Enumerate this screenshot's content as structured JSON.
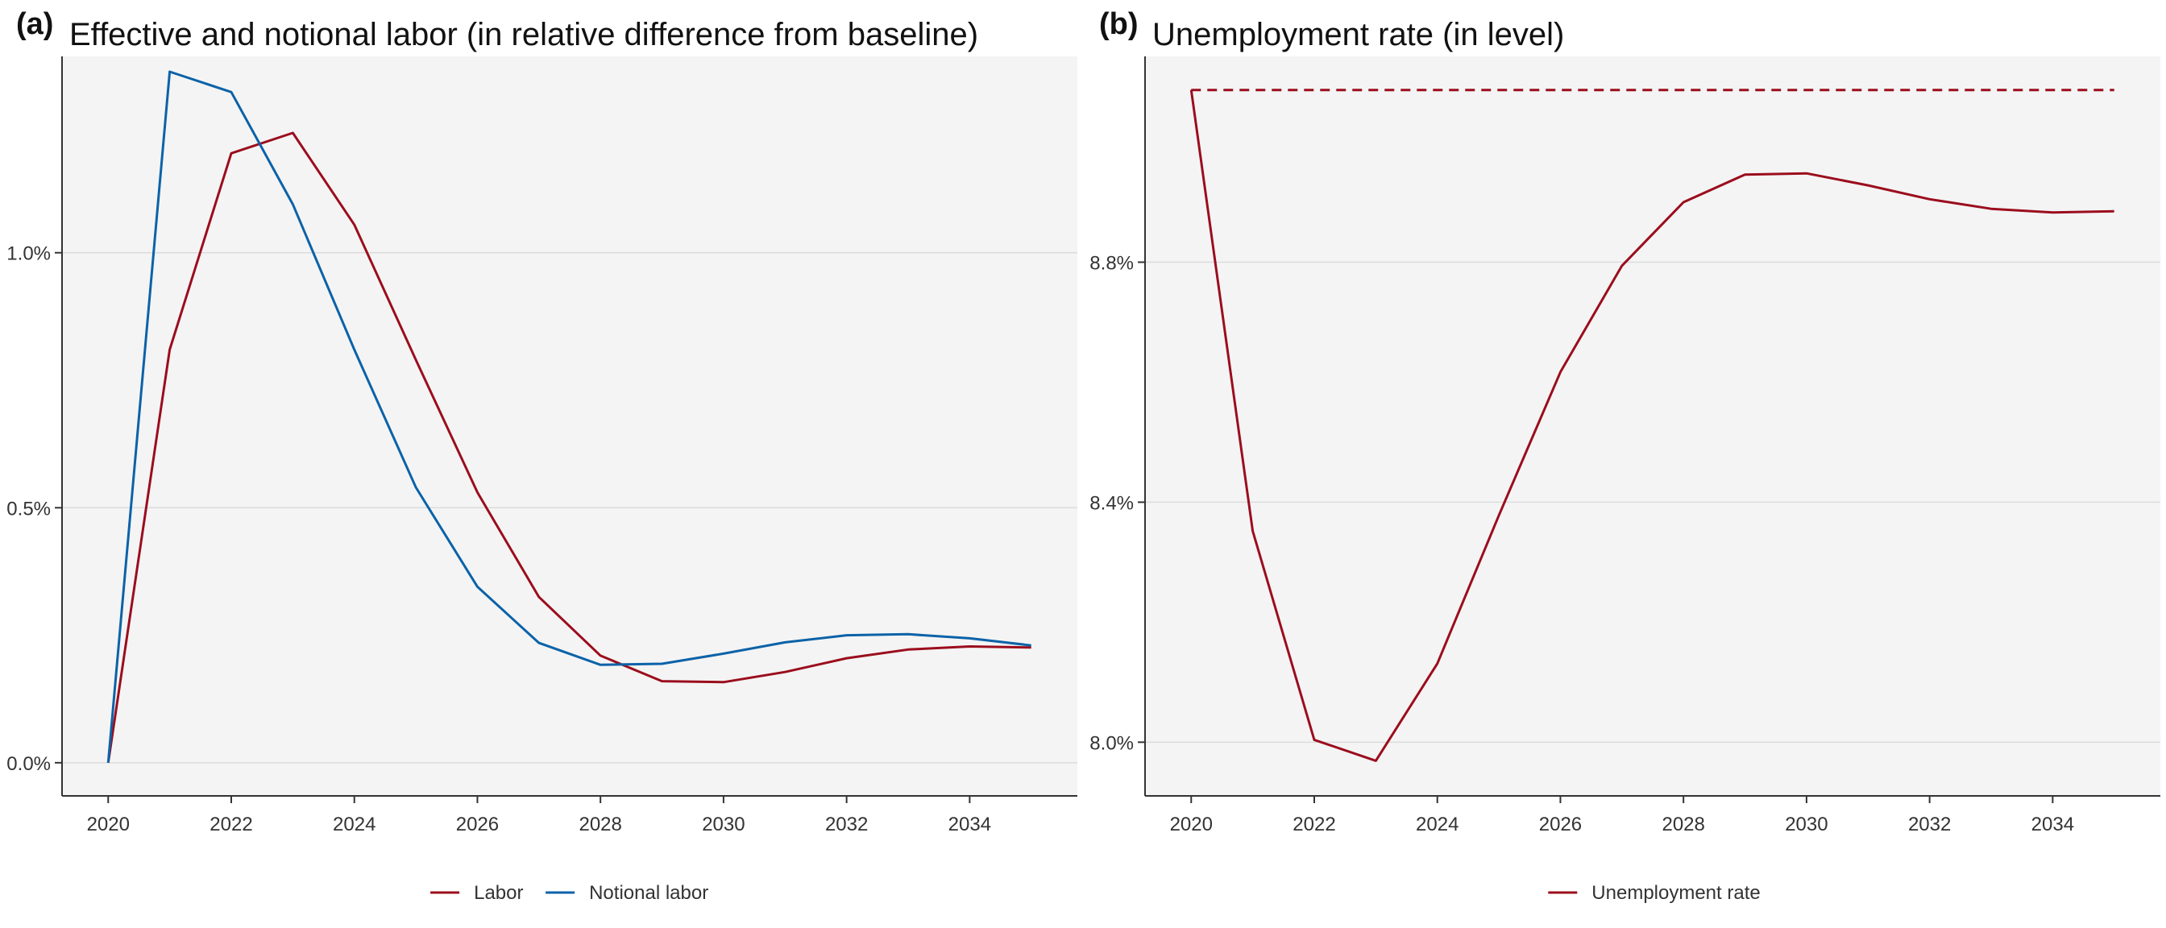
{
  "colors": {
    "labor": "#9b0d1d",
    "notional": "#0b62a8",
    "unemployment": "#9b0d1d",
    "panel_background": "#f4f4f4",
    "gridline": "#dcdcdc",
    "axis": "#333333"
  },
  "chart_data": [
    {
      "type": "line",
      "panel_label": "(a)",
      "title": "Effective and notional labor (in relative difference from baseline)",
      "xlabel": "",
      "ylabel": "",
      "xlim": [
        2019.25,
        2035.75
      ],
      "ylim": [
        -0.00065,
        0.01385
      ],
      "x_ticks": [
        2020,
        2022,
        2024,
        2026,
        2028,
        2030,
        2032,
        2034
      ],
      "x_tick_labels": [
        "2020",
        "2022",
        "2024",
        "2026",
        "2028",
        "2030",
        "2032",
        "2034"
      ],
      "y_ticks": [
        0.0,
        0.005,
        0.01
      ],
      "y_tick_labels": [
        "0.0%",
        "0.5%",
        "1.0%"
      ],
      "grid": true,
      "legend_position": "bottom",
      "x": [
        2020,
        2021,
        2022,
        2023,
        2024,
        2025,
        2026,
        2027,
        2028,
        2029,
        2030,
        2031,
        2032,
        2033,
        2034,
        2035
      ],
      "series": [
        {
          "name": "Labor",
          "color_key": "labor",
          "dash": false,
          "values": [
            0.0,
            0.0081,
            0.01195,
            0.01235,
            0.01055,
            0.0079,
            0.0053,
            0.00325,
            0.0021,
            0.0016,
            0.00158,
            0.00178,
            0.00205,
            0.00222,
            0.00228,
            0.00226
          ]
        },
        {
          "name": "Notional labor",
          "color_key": "notional",
          "dash": false,
          "values": [
            0.0,
            0.01355,
            0.01315,
            0.01095,
            0.0081,
            0.0054,
            0.00345,
            0.00235,
            0.00192,
            0.00194,
            0.00214,
            0.00236,
            0.0025,
            0.00252,
            0.00244,
            0.0023
          ]
        }
      ]
    },
    {
      "type": "line",
      "panel_label": "(b)",
      "title": "Unemployment rate (in level)",
      "xlabel": "",
      "ylabel": "",
      "xlim": [
        2019.25,
        2035.75
      ],
      "ylim": [
        7.9105,
        9.143
      ],
      "x_ticks": [
        2020,
        2022,
        2024,
        2026,
        2028,
        2030,
        2032,
        2034
      ],
      "x_tick_labels": [
        "2020",
        "2022",
        "2024",
        "2026",
        "2028",
        "2030",
        "2032",
        "2034"
      ],
      "y_ticks": [
        8.0,
        8.4,
        8.8
      ],
      "y_tick_labels": [
        "8.0%",
        "8.4%",
        "8.8%"
      ],
      "grid": true,
      "legend_position": "bottom",
      "x": [
        2020,
        2021,
        2022,
        2023,
        2024,
        2025,
        2026,
        2027,
        2028,
        2029,
        2030,
        2031,
        2032,
        2033,
        2034,
        2035
      ],
      "reference_line": {
        "color_key": "unemployment",
        "dash": true,
        "x_start": 2020,
        "x_end": 2035,
        "value": 9.087
      },
      "series": [
        {
          "name": "Unemployment rate",
          "color_key": "unemployment",
          "dash": false,
          "values": [
            9.087,
            8.352,
            8.004,
            7.969,
            8.131,
            8.378,
            8.617,
            8.794,
            8.9,
            8.946,
            8.948,
            8.928,
            8.905,
            8.889,
            8.883,
            8.885
          ]
        }
      ]
    }
  ]
}
